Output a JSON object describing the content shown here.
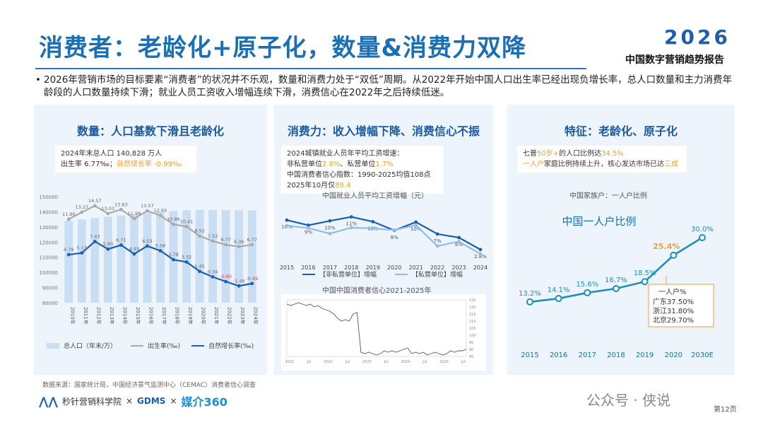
{
  "header": {
    "title": "消费者：老龄化+原子化，数量&消费力双降",
    "logo_year": "2026",
    "report_name": "中国数字营销趋势报告"
  },
  "bullet": "2026年营销市场的目标要素“消费者”的状况并不乐观，数量和消费力处于“双低”周期。从2022年开始中国人口出生率已经出现负增长率，总人口数量和主力消费年龄段的人口数量持续下滑；就业人员工资收入增幅连续下滑，消费信心在2022年之后持续低迷。",
  "panel1": {
    "title": "数量：人口基数下滑且老龄化",
    "info_line1": "2024年末总人口 140,828 万人",
    "info_line2_pre": "出生率 6.77‰；",
    "info_line2_hl": "自然增长率 -0.99‰",
    "legend": [
      "总人口（年末/万）",
      "出生率(‰)",
      "自然增长率(‰)"
    ]
  },
  "panel2": {
    "title": "消费力：收入增幅下降、消费信心不振",
    "info_lines": [
      {
        "pre": "2024城镇就业人员年平均工资增速：",
        "hl": "",
        "post": ""
      },
      {
        "pre": "非私营单位",
        "hl": "2.8%",
        "post": "、私营单位"
      },
      {
        "pre": "中国消费者信心指数：1990-2025均值108点",
        "hl": "",
        "post": ""
      },
      {
        "pre": "2025年10月仅",
        "hl": "89.4",
        "post": ""
      }
    ],
    "info_line2_tail": "1.7%",
    "wage_caption": "中国就业人员平均工资增幅（元）",
    "wage_legend": [
      "【非私营单位】增幅",
      "【私营单位】增幅"
    ],
    "confidence_caption": "中国中国消费者信心2021-2025年"
  },
  "panel3": {
    "title": "特征：老龄化、原子化",
    "info_line1_pre": "七普",
    "info_line1_hl1": "50岁+",
    "info_line1_mid": "的人口比例达",
    "info_line1_hl2": "34.5%",
    "info_line2_hl": "一人户",
    "info_line2_mid": "家庭比例持续上升，核心发达市场已达",
    "info_line2_hl2": "三成",
    "caption": "中国家族户：一人户比例",
    "annotation_title": "一人户%",
    "annotation_lines": [
      "广东37.50%",
      "浙江31.80%",
      "北京29.70%"
    ]
  },
  "footer": {
    "source": "数据来源：国家统计局，中国经济景气监测中心（CEMAC）消费者信心调查",
    "org1": "秒针营销科学院",
    "sep": "×",
    "org2": "GDMS",
    "org3": "媒介360",
    "wechat": "公众号 · 侠说",
    "page": "第12页"
  },
  "colors": {
    "primary": "#1a6fb5",
    "accent_orange": "#f0a030",
    "bar": "#c9def2",
    "line_dark": "#1d5fae",
    "line_grey": "#aaaaaa",
    "panel_bg": "#eef4fb"
  },
  "chart_data": [
    {
      "type": "bar",
      "title": "数量：人口基数下滑且老龄化",
      "categories": [
        "2010年",
        "2011年",
        "2012年",
        "2013年",
        "2014年",
        "2015年",
        "2016年",
        "2017年",
        "2018年",
        "2019年",
        "2020年",
        "2021年",
        "2022年",
        "2023年",
        "2024年"
      ],
      "series": [
        {
          "name": "总人口（年末/万）",
          "type": "bar",
          "values": [
            134091,
            134916,
            135922,
            136726,
            137646,
            138326,
            139232,
            140011,
            140541,
            141008,
            141212,
            141260,
            141175,
            140967,
            140828
          ]
        },
        {
          "name": "出生率(‰)",
          "type": "line",
          "values": [
            11.9,
            13.27,
            14.57,
            13.03,
            13.83,
            11.99,
            13.57,
            12.64,
            10.86,
            10.41,
            8.52,
            7.52,
            6.77,
            6.39,
            6.77
          ],
          "labels": [
            "11.90",
            "13.27",
            "14.57",
            "13.03",
            "13.83",
            "11.99",
            "13.57",
            "12.64",
            "10.86",
            "10.41",
            "8.52",
            "7.52",
            "6.77",
            "6.39",
            "6.77"
          ]
        },
        {
          "name": "自然增长率(‰)",
          "type": "line",
          "values": [
            4.79,
            5.13,
            7.43,
            5.9,
            6.71,
            4.93,
            6.53,
            5.58,
            3.78,
            3.32,
            1.45,
            0.34,
            -0.6,
            -1.48,
            -0.99
          ],
          "labels": [
            "4.79",
            "5.13",
            "7.43",
            "5.90",
            "6.71",
            "4.93",
            "6.53",
            "5.58",
            "3.78",
            "3.32",
            "1.45",
            "0.34",
            "-0.60",
            "-1.48",
            "-0.99"
          ]
        }
      ],
      "y_ticks": [
        "150000",
        "140000",
        "130000",
        "120000",
        "110000",
        "100000",
        "90000",
        "80000"
      ],
      "ylim": [
        80000,
        150000
      ]
    },
    {
      "type": "line",
      "title": "中国就业人员平均工资增幅（元）",
      "categories": [
        "2015",
        "2016",
        "2017",
        "2018",
        "2019",
        "2020",
        "2021",
        "2022",
        "2023",
        "2024"
      ],
      "series": [
        {
          "name": "【非私营单位】增幅",
          "values": [
            10.2,
            8.9,
            10.0,
            11.0,
            9.8,
            7.6,
            9.7,
            6.7,
            5.8,
            2.8
          ],
          "labels": [
            "10%",
            "9%",
            "10%",
            "11%",
            "10%",
            "8%",
            "10%",
            "7%",
            "6%",
            "2.8%"
          ]
        },
        {
          "name": "【私营单位】增幅",
          "values": [
            8.8,
            8.2,
            6.8,
            8.3,
            8.1,
            7.7,
            8.9,
            3.7,
            4.8,
            1.7
          ],
          "labels": [
            "",
            "",
            "",
            "",
            "",
            "",
            "",
            "",
            "",
            ""
          ]
        }
      ]
    },
    {
      "type": "line",
      "title": "中国中国消费者信心2021-2025年",
      "x_ticks": [
        "2021",
        "Jul",
        "2022",
        "Jul",
        "2023",
        "Jul",
        "2024",
        "Jul",
        "2025",
        "Jul"
      ],
      "y_ticks": [
        "125",
        "120",
        "115",
        "110",
        "105",
        "100",
        "95",
        "90",
        "85"
      ],
      "ylim": [
        85,
        125
      ],
      "series": [
        {
          "name": "消费者信心指数",
          "values": [
            122,
            121,
            122,
            123,
            122,
            121,
            122,
            120,
            121,
            119,
            118,
            117,
            115,
            112,
            110,
            111,
            110,
            115,
            116,
            88,
            87,
            88,
            87,
            86,
            87,
            89,
            88,
            89,
            88,
            89,
            90,
            91,
            87,
            88,
            87,
            88,
            86,
            87,
            88,
            87,
            86,
            87,
            89,
            88,
            89,
            89,
            90
          ]
        }
      ]
    },
    {
      "type": "line",
      "title": "中国一人户比例",
      "categories": [
        "2015",
        "2016",
        "2017",
        "2018",
        "2019",
        "2020",
        "2030E"
      ],
      "series": [
        {
          "name": "一人户比例",
          "values": [
            13.2,
            14.1,
            15.6,
            16.7,
            18.5,
            25.4,
            30.0
          ],
          "labels": [
            "13.2%",
            "14.1%",
            "15.6%",
            "16.7%",
            "18.5%",
            "25.4%",
            "30.0%"
          ]
        }
      ]
    }
  ]
}
